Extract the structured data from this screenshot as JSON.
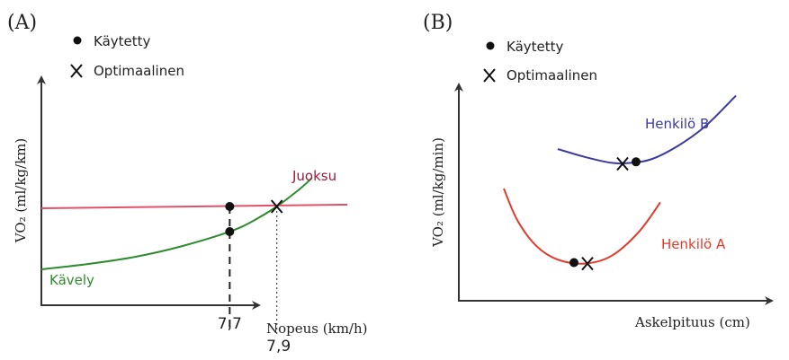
{
  "colors": {
    "axis": "#333333",
    "walk": "#2e8b2e",
    "run": "#e0526a",
    "run_label": "#9b1b3a",
    "person_b": "#3a3aa0",
    "person_a": "#e03a2a",
    "marker": "#111111"
  },
  "icons": {
    "used_marker": "filled-circle",
    "optimal_marker": "x-cross"
  },
  "chart_data": [
    {
      "type": "line",
      "panel_label": "(A)",
      "xlabel": "Nopeus (km/h)",
      "ylabel": "VO₂ (ml/kg/km)",
      "legend": {
        "position": "top-left",
        "used": "Käytetty",
        "optimal": "Optimaalinen"
      },
      "xlim": [
        6.9,
        8.1
      ],
      "ylim": [
        0,
        10
      ],
      "grid": false,
      "series": [
        {
          "name": "Kävely",
          "color_key": "walk",
          "x": [
            6.9,
            7.1,
            7.3,
            7.5,
            7.7,
            7.8,
            7.9,
            8.0,
            8.05
          ],
          "y": [
            2.0,
            2.3,
            2.7,
            3.3,
            4.1,
            4.7,
            5.5,
            6.5,
            7.1
          ]
        },
        {
          "name": "Juoksu",
          "color_key": "run",
          "x": [
            6.9,
            8.2
          ],
          "y": [
            5.4,
            5.6
          ]
        }
      ],
      "markers": [
        {
          "kind": "used",
          "x": 7.7,
          "y": 5.5
        },
        {
          "kind": "used",
          "x": 7.7,
          "y": 4.1
        },
        {
          "kind": "optimal",
          "x": 7.9,
          "y": 5.5
        }
      ],
      "ticks": [
        {
          "x": 7.7,
          "label": "7,7",
          "style": "dashed"
        },
        {
          "x": 7.9,
          "label": "7,9",
          "style": "dotted"
        }
      ]
    },
    {
      "type": "line",
      "panel_label": "(B)",
      "xlabel": "Askelpituus (cm)",
      "ylabel": "VO₂ (ml/kg/min)",
      "legend": {
        "position": "top-left",
        "used": "Käytetty",
        "optimal": "Optimaalinen"
      },
      "xlim": [
        0,
        10
      ],
      "ylim": [
        0,
        10
      ],
      "grid": false,
      "series": [
        {
          "name": "Henkilö B",
          "color_key": "person_b",
          "x": [
            3.0,
            4.0,
            5.0,
            5.7,
            6.5,
            7.5,
            8.5,
            9.6
          ],
          "y": [
            7.0,
            6.6,
            6.3,
            6.3,
            6.5,
            7.2,
            8.2,
            9.7
          ]
        },
        {
          "name": "Henkilö A",
          "color_key": "person_a",
          "x": [
            1.0,
            1.5,
            2.2,
            3.0,
            4.0,
            5.0,
            6.0,
            6.8
          ],
          "y": [
            5.0,
            3.4,
            2.1,
            1.4,
            1.2,
            1.6,
            2.8,
            4.3
          ]
        }
      ],
      "markers": [
        {
          "kind": "used",
          "x": 5.9,
          "y": 6.35
        },
        {
          "kind": "optimal",
          "x": 5.4,
          "y": 6.25
        },
        {
          "kind": "used",
          "x": 3.6,
          "y": 1.25
        },
        {
          "kind": "optimal",
          "x": 4.1,
          "y": 1.2
        }
      ]
    }
  ]
}
